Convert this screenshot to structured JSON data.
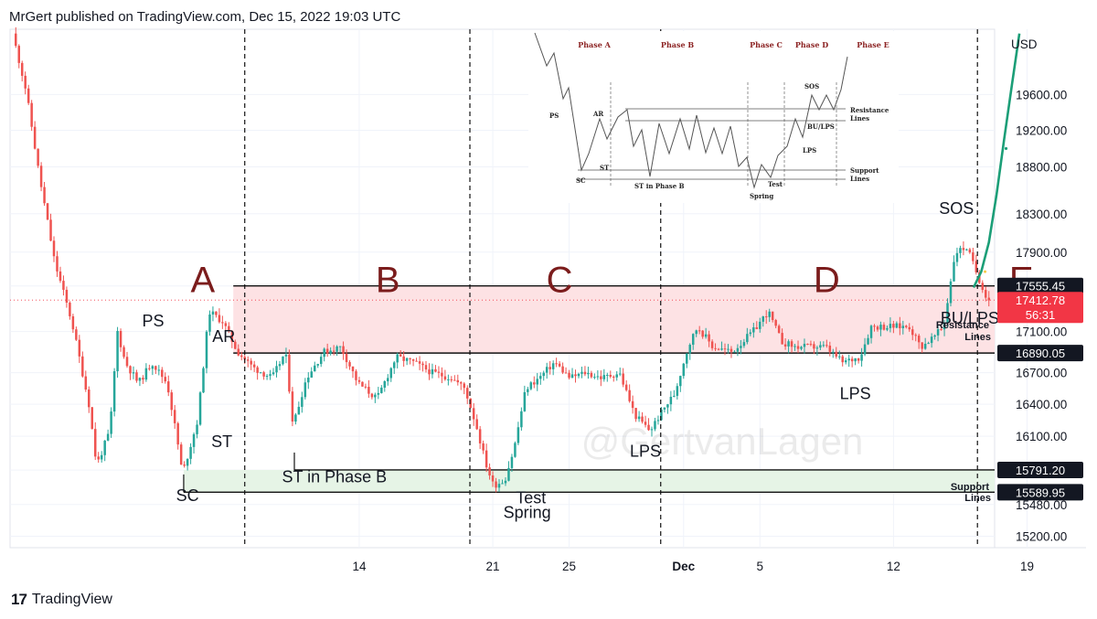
{
  "header": {
    "text": "MrGert published on TradingView.com, Dec 15, 2022 19:03 UTC"
  },
  "footer": {
    "logo": "17",
    "brand": "TradingView"
  },
  "watermark": "@GertvanLagen",
  "colors": {
    "up": "#26a69a",
    "down": "#ef5350",
    "resistance_fill": "#fde2e4",
    "support_fill": "#e6f4e6",
    "phase_letter": "#7b1c1c",
    "projection": "#1b9e77",
    "current_price": "#f23645"
  },
  "chart_data": {
    "type": "candlestick",
    "currency": "USD",
    "ylim": [
      15100,
      20350
    ],
    "y_ticks": [
      15200,
      15480,
      15790,
      16100,
      16400,
      16700,
      17100,
      17555,
      17900,
      18300,
      18800,
      19200,
      19600
    ],
    "x_range_days": [
      -5.3,
      46.3
    ],
    "x_ticks": [
      {
        "day": 13,
        "label": "14"
      },
      {
        "day": 20,
        "label": "21"
      },
      {
        "day": 24,
        "label": "25"
      },
      {
        "day": 30,
        "label": "Dec",
        "bold": true
      },
      {
        "day": 34,
        "label": "5"
      },
      {
        "day": 41,
        "label": "12"
      },
      {
        "day": 48,
        "label": "19"
      }
    ],
    "axis_unit_label": "USD",
    "price_tags": [
      {
        "price": 17555.45,
        "label": "17555.45",
        "style": "dark"
      },
      {
        "price": 17412.78,
        "label": "17412.78",
        "sublabel": "56:31",
        "style": "red"
      },
      {
        "price": 16890.05,
        "label": "16890.05",
        "style": "dark"
      },
      {
        "price": 15791.2,
        "label": "15791.20",
        "style": "dark"
      },
      {
        "price": 15589.95,
        "label": "15589.95",
        "style": "dark"
      }
    ],
    "bands": {
      "resistance": [
        16890.05,
        17555.45
      ],
      "support": [
        15589.95,
        15791.2
      ],
      "resistance_label": [
        "Resistance",
        "Lines"
      ],
      "support_label": [
        "Support",
        "Lines"
      ]
    },
    "phase_dividers_day": [
      7.0,
      18.8,
      28.8,
      45.4
    ],
    "phases": [
      {
        "label": "A",
        "day": 4.8,
        "price": 17620
      },
      {
        "label": "B",
        "day": 14.5,
        "price": 17620
      },
      {
        "label": "C",
        "day": 23.5,
        "price": 17620
      },
      {
        "label": "D",
        "day": 37.5,
        "price": 17620
      },
      {
        "label": "E",
        "day": 47.7,
        "price": 17620
      }
    ],
    "annotations": [
      {
        "text": "PS",
        "day": 2.2,
        "price": 17150
      },
      {
        "text": "AR",
        "day": 5.9,
        "price": 17000
      },
      {
        "text": "ST",
        "day": 5.8,
        "price": 16000
      },
      {
        "text": "ST in Phase B",
        "day": 11.7,
        "price": 15680
      },
      {
        "text": "SC",
        "day": 4.0,
        "price": 15510
      },
      {
        "text": "Test",
        "day": 22.0,
        "price": 15490
      },
      {
        "text": "Spring",
        "day": 21.8,
        "price": 15360
      },
      {
        "text": "LPS",
        "day": 28.0,
        "price": 15910
      },
      {
        "text": "LPS",
        "day": 39.0,
        "price": 16450
      },
      {
        "text": "SOS",
        "day": 44.3,
        "price": 18300
      },
      {
        "text": "BU/LPS",
        "day": 45.0,
        "price": 17180
      }
    ],
    "candles": [],
    "projection": [
      [
        45.2,
        17540
      ],
      [
        45.6,
        17700
      ],
      [
        46.0,
        18000
      ],
      [
        46.4,
        18500
      ],
      [
        46.8,
        19100
      ],
      [
        47.2,
        19700
      ],
      [
        47.6,
        20300
      ]
    ]
  },
  "inset": {
    "phases": [
      "Phase A",
      "Phase B",
      "Phase C",
      "Phase D",
      "Phase E"
    ],
    "labels": [
      "PS",
      "AR",
      "SC",
      "ST",
      "ST in Phase B",
      "Spring",
      "Test",
      "LPS",
      "BU/LPS",
      "SOS"
    ],
    "resistance_label": [
      "Resistance",
      "Lines"
    ],
    "support_label": [
      "Support",
      "Lines"
    ]
  }
}
